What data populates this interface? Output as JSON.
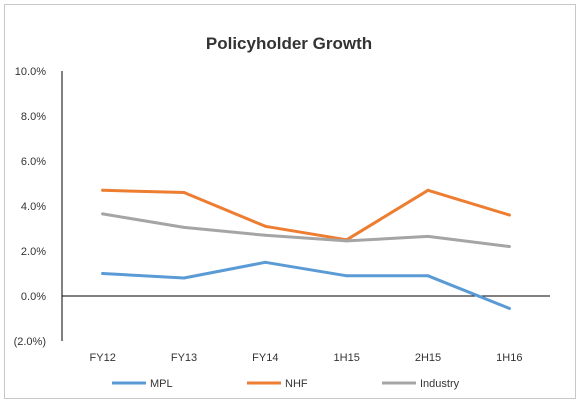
{
  "chart_data": {
    "type": "line",
    "title": "Policyholder Growth",
    "categories": [
      "FY12",
      "FY13",
      "FY14",
      "1H15",
      "2H15",
      "1H16"
    ],
    "y_ticks": [
      "10.0%",
      "8.0%",
      "6.0%",
      "4.0%",
      "2.0%",
      "0.0%",
      "(2.0%)"
    ],
    "y_tick_values": [
      10,
      8,
      6,
      4,
      2,
      0,
      -2
    ],
    "negative_tick_color": "#c00000",
    "ylim": [
      -2,
      10
    ],
    "grid": false,
    "legend_position": "bottom",
    "series": [
      {
        "name": "MPL",
        "color": "#5b9bd5",
        "values": [
          1.0,
          0.8,
          1.5,
          0.9,
          0.9,
          -0.55
        ]
      },
      {
        "name": "NHF",
        "color": "#ed7d31",
        "values": [
          4.7,
          4.6,
          3.1,
          2.5,
          4.7,
          3.6
        ]
      },
      {
        "name": "Industry",
        "color": "#a5a5a5",
        "values": [
          3.65,
          3.05,
          2.7,
          2.45,
          2.65,
          2.2
        ]
      }
    ]
  }
}
